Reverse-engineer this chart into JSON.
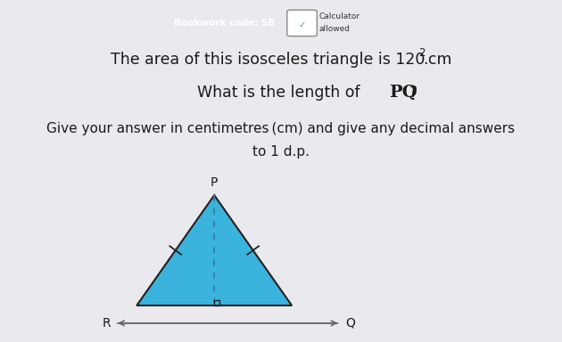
{
  "background_color": "#eaeaee",
  "bookwork_code": "Bookwork code: 5B",
  "calculator_text": "Calculator\nallowed",
  "triangle_color": "#3ab4dc",
  "triangle_edge_color": "#222222",
  "label_P": "P",
  "label_R": "R",
  "label_Q": "Q",
  "axis_arrow_color": "#666666",
  "dashed_line_color": "#3a7ab0",
  "tick_mark_color": "#222222",
  "bookwork_bg": "#2b3f7a",
  "text_color": "#1a1a1a"
}
